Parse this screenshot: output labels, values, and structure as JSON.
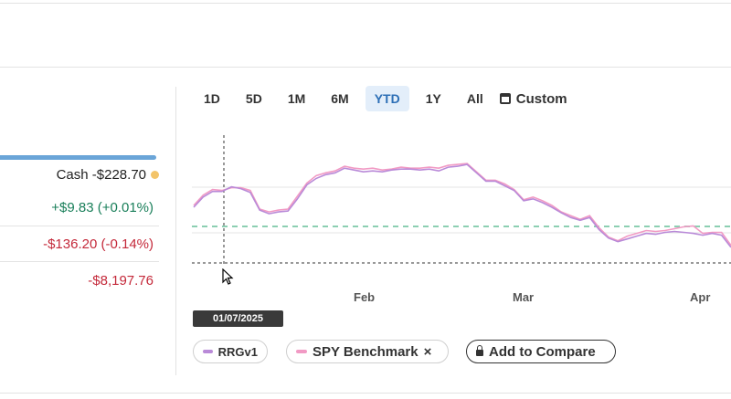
{
  "summary": {
    "cash_label": "Cash",
    "cash_value": "-$228.70",
    "row1": "+$9.83 (+0.01%)",
    "row2": "-$136.20 (-0.14%)",
    "row3": "-$8,197.76"
  },
  "ranges": [
    "1D",
    "5D",
    "1M",
    "6M",
    "YTD",
    "1Y",
    "All"
  ],
  "active_range": "YTD",
  "custom_label": "Custom",
  "tooltip_date": "01/07/2025",
  "legend": {
    "rrg": "RRGv1",
    "spy": "SPY Benchmark",
    "remove_symbol": "×",
    "add_compare": "Add to Compare"
  },
  "colors": {
    "rrg": "#b98ad8",
    "spy": "#f19ac4",
    "baseline": "#8ccfb2",
    "accent": "#2d6fb6"
  },
  "chart_data": {
    "type": "line",
    "x_tick_labels": [
      "Feb",
      "Mar",
      "Apr"
    ],
    "series": [
      {
        "name": "RRGv1",
        "values": [
          20.5,
          21.6,
          22.2,
          22.2,
          22.7,
          22.5,
          22.1,
          20.2,
          19.8,
          20.0,
          20.1,
          21.4,
          22.9,
          23.6,
          24.0,
          24.2,
          24.7,
          24.5,
          24.3,
          24.4,
          24.3,
          24.5,
          24.6,
          24.6,
          24.5,
          24.6,
          24.4,
          24.8,
          24.9,
          25.1,
          24.2,
          23.3,
          23.3,
          22.8,
          22.3,
          21.2,
          21.4,
          21.0,
          20.5,
          19.9,
          19.4,
          19.1,
          19.4,
          18.1,
          17.2,
          16.8,
          17.1,
          17.4,
          17.7,
          17.6,
          17.8,
          17.9,
          17.8,
          17.7,
          17.5,
          17.7,
          17.5,
          16.2
        ]
      },
      {
        "name": "SPY Benchmark",
        "values": [
          20.7,
          21.8,
          22.4,
          22.3,
          22.6,
          22.6,
          22.3,
          20.3,
          20.0,
          20.2,
          20.3,
          21.7,
          23.1,
          23.9,
          24.2,
          24.4,
          24.9,
          24.7,
          24.6,
          24.7,
          24.5,
          24.6,
          24.8,
          24.7,
          24.7,
          24.8,
          24.7,
          25.0,
          25.1,
          25.2,
          24.3,
          23.4,
          23.4,
          23.0,
          22.4,
          21.3,
          21.6,
          21.2,
          20.7,
          20.0,
          19.6,
          19.2,
          19.6,
          18.3,
          17.3,
          16.9,
          17.4,
          17.7,
          18.0,
          17.9,
          18.0,
          18.2,
          18.4,
          18.5,
          17.7,
          17.8,
          17.8,
          16.4
        ]
      }
    ],
    "baseline_style": "dashed",
    "crosshair_date": "01/07/2025"
  }
}
